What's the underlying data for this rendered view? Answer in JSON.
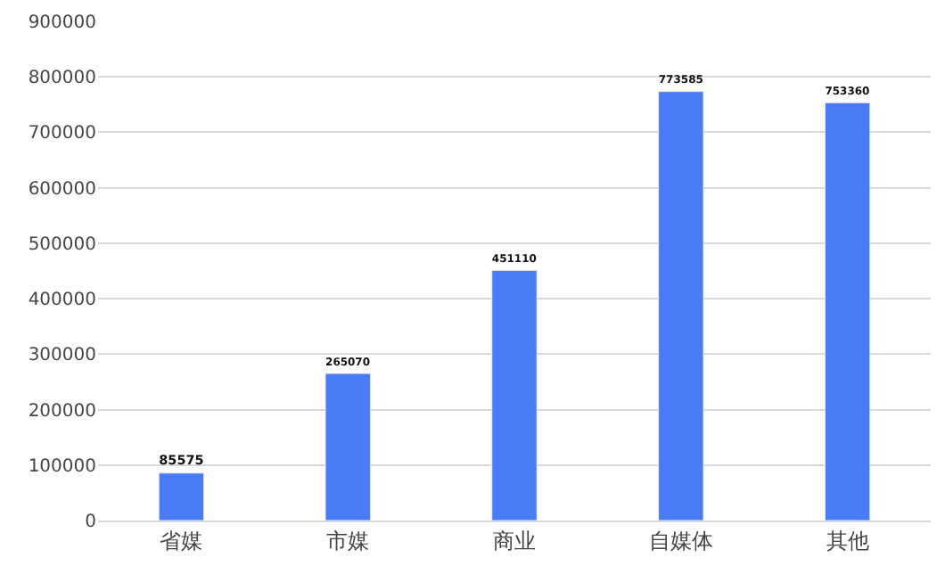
{
  "chart_data": {
    "type": "bar",
    "categories": [
      "省媒",
      "市媒",
      "商业",
      "自媒体",
      "其他"
    ],
    "values": [
      85575,
      265070,
      451110,
      773585,
      753360
    ],
    "color": "#4a7bf7",
    "ylim": [
      0,
      900000
    ],
    "yticks": [
      0,
      100000,
      200000,
      300000,
      400000,
      500000,
      600000,
      700000,
      800000,
      900000
    ],
    "grid": "y",
    "data_labels": true
  }
}
